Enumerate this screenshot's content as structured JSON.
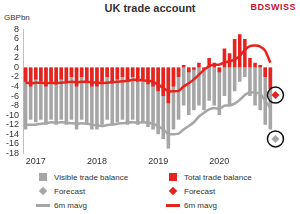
{
  "chart_data": {
    "type": "bar",
    "title": "UK trade account",
    "y_label": "GBPbn",
    "logo": "BDSWISS",
    "categories": [
      null,
      null,
      "2017",
      null,
      null,
      null,
      null,
      null,
      null,
      null,
      null,
      null,
      null,
      null,
      "2018",
      null,
      null,
      null,
      null,
      null,
      null,
      null,
      null,
      null,
      null,
      null,
      "2019",
      null,
      null,
      null,
      null,
      null,
      null,
      null,
      null,
      null,
      null,
      null,
      "2020",
      null,
      null,
      null,
      null,
      null,
      null,
      null,
      null,
      null,
      null,
      null
    ],
    "ylim": [
      -18,
      8
    ],
    "yticks": [
      -18,
      -16,
      -14,
      -12,
      -10,
      -8,
      -6,
      -4,
      -2,
      0,
      2,
      4,
      6,
      8
    ],
    "grid": false,
    "legend": "bottom",
    "series": [
      {
        "name": "Visible trade balance",
        "type": "bar",
        "color": "#a6a6a6",
        "values": [
          -13,
          -11,
          -11.5,
          -11,
          -12,
          -11,
          -12,
          -11,
          -12,
          -11,
          -13,
          -11,
          -12,
          -13,
          -13,
          -12,
          -11,
          -12,
          -11.5,
          -11,
          -12,
          -11,
          -12,
          -11.5,
          -12.5,
          -13,
          -14,
          -15,
          -17,
          -13,
          -11,
          -8,
          -10,
          -9,
          -8,
          -9,
          -7,
          -8,
          -10,
          -6,
          -8,
          -5,
          -3,
          -2,
          -6,
          -8,
          -9,
          -12,
          -13,
          null
        ]
      },
      {
        "name": "Total trade balance",
        "type": "bar",
        "color": "#e8231e",
        "values": [
          -3,
          -4,
          -2.5,
          -3,
          -4,
          -3,
          -3.5,
          -2.5,
          -3,
          -2,
          -4,
          -2,
          -3,
          -4,
          -4,
          -3,
          -2,
          -3,
          -2.5,
          -2,
          -3,
          -2,
          -3,
          -2.5,
          -3.5,
          -4,
          -5,
          -6,
          -7.5,
          -4,
          -2,
          0.5,
          -1,
          -0.5,
          1,
          -0.5,
          2,
          1,
          -1,
          4,
          3,
          6,
          7,
          6,
          2,
          1,
          0.5,
          -2,
          -4.5,
          null
        ]
      },
      {
        "name": "Forecast",
        "type": "scatter",
        "marker": "diamond",
        "color": "#a6a6a6",
        "values": [
          null,
          null,
          null,
          null,
          null,
          null,
          null,
          null,
          null,
          null,
          null,
          null,
          null,
          null,
          null,
          null,
          null,
          null,
          null,
          null,
          null,
          null,
          null,
          null,
          null,
          null,
          null,
          null,
          null,
          null,
          null,
          null,
          null,
          null,
          null,
          null,
          null,
          null,
          null,
          null,
          null,
          null,
          null,
          null,
          null,
          null,
          null,
          null,
          null,
          -15
        ]
      },
      {
        "name": "Forecast",
        "type": "scatter",
        "marker": "diamond",
        "color": "#e8231e",
        "values": [
          null,
          null,
          null,
          null,
          null,
          null,
          null,
          null,
          null,
          null,
          null,
          null,
          null,
          null,
          null,
          null,
          null,
          null,
          null,
          null,
          null,
          null,
          null,
          null,
          null,
          null,
          null,
          null,
          null,
          null,
          null,
          null,
          null,
          null,
          null,
          null,
          null,
          null,
          null,
          null,
          null,
          null,
          null,
          null,
          null,
          null,
          null,
          null,
          null,
          -5.8
        ]
      },
      {
        "name": "6m mavg",
        "type": "line",
        "line_style": "solid",
        "color": "#a6a6a6",
        "values": [
          -12,
          -12,
          -12,
          -11.8,
          -11.7,
          -11.5,
          -11.6,
          -11.5,
          -11.6,
          -11.7,
          -11.8,
          -11.7,
          -11.8,
          -12,
          -12.2,
          -12.3,
          -12.1,
          -12,
          -11.8,
          -11.7,
          -11.6,
          -11.5,
          -11.6,
          -11.5,
          -11.6,
          -11.8,
          -12.3,
          -13,
          -14,
          -14,
          -13.9,
          -13,
          -12.3,
          -11.5,
          -10.3,
          -9.5,
          -8.8,
          -8.5,
          -8.7,
          -8,
          -8,
          -7.6,
          -6.8,
          -5.8,
          -5.2,
          -5.3,
          -5.5,
          -7,
          -8.5,
          null
        ]
      },
      {
        "name": "6m mavg",
        "type": "line",
        "line_style": "solid",
        "color": "#e8231e",
        "values": [
          -3.2,
          -3.3,
          -3.2,
          -3.2,
          -3.3,
          -3.2,
          -3.3,
          -3.2,
          -3.1,
          -3,
          -3.1,
          -3,
          -3,
          -3.1,
          -3.2,
          -3.3,
          -3.2,
          -3.1,
          -3,
          -2.9,
          -2.8,
          -2.6,
          -2.6,
          -2.7,
          -2.8,
          -3,
          -3.6,
          -4.3,
          -5,
          -5,
          -4.9,
          -4,
          -3.3,
          -2.5,
          -1.5,
          -0.5,
          0.3,
          0.6,
          0.6,
          1.1,
          1.3,
          1.7,
          2.4,
          3.7,
          4.5,
          4.6,
          4.4,
          3.5,
          1,
          null
        ]
      }
    ]
  }
}
